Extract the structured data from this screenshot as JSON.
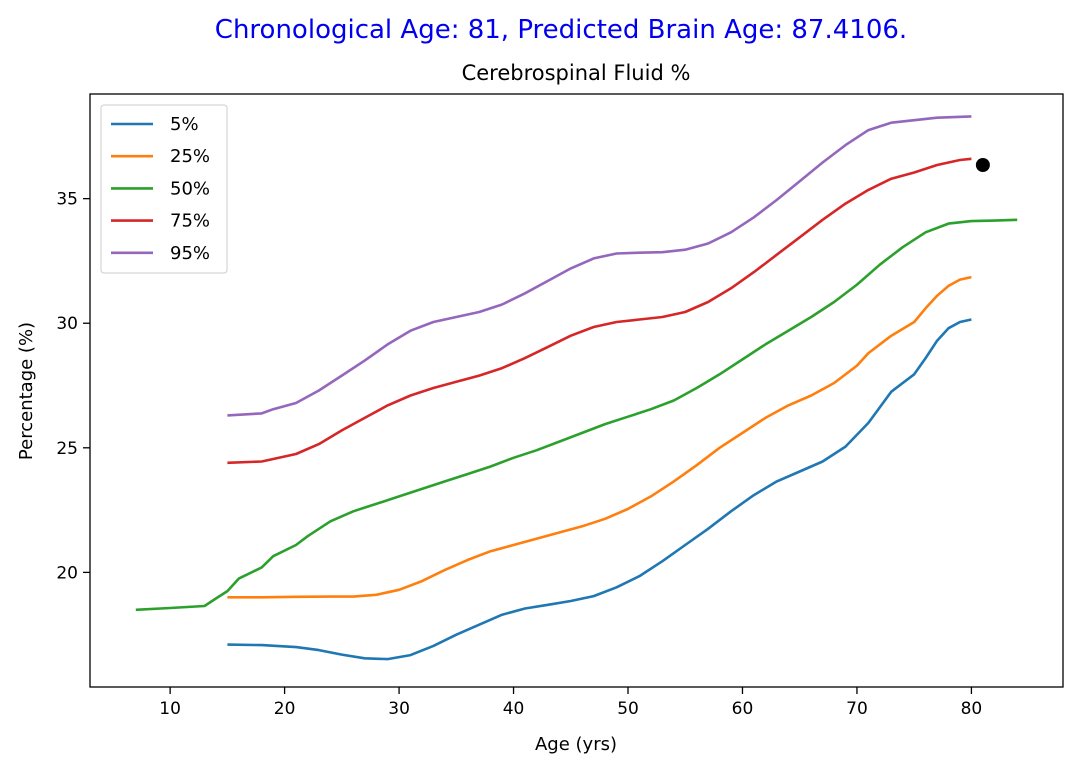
{
  "chart_data": {
    "type": "line",
    "suptitle": "Chronological Age: 81, Predicted Brain Age: 87.4106.",
    "title": "Cerebrospinal Fluid %",
    "xlabel": "Age (yrs)",
    "ylabel": "Percentage (%)",
    "xlim": [
      3,
      88
    ],
    "ylim": [
      15.4,
      39.2
    ],
    "xticks": [
      10,
      20,
      30,
      40,
      50,
      60,
      70,
      80
    ],
    "yticks": [
      20,
      25,
      30,
      35
    ],
    "grid": false,
    "legend_position": "top-left",
    "series": [
      {
        "name": "5%",
        "color": "#1f77b4",
        "points": [
          [
            15,
            17.1
          ],
          [
            18,
            17.08
          ],
          [
            21,
            17.0
          ],
          [
            23,
            16.88
          ],
          [
            25,
            16.7
          ],
          [
            27,
            16.55
          ],
          [
            29,
            16.52
          ],
          [
            31,
            16.68
          ],
          [
            33,
            17.05
          ],
          [
            35,
            17.5
          ],
          [
            37,
            17.9
          ],
          [
            39,
            18.3
          ],
          [
            41,
            18.55
          ],
          [
            43,
            18.7
          ],
          [
            45,
            18.85
          ],
          [
            47,
            19.05
          ],
          [
            49,
            19.4
          ],
          [
            51,
            19.85
          ],
          [
            53,
            20.45
          ],
          [
            55,
            21.1
          ],
          [
            57,
            21.75
          ],
          [
            59,
            22.45
          ],
          [
            61,
            23.1
          ],
          [
            63,
            23.65
          ],
          [
            65,
            24.05
          ],
          [
            67,
            24.45
          ],
          [
            69,
            25.05
          ],
          [
            71,
            26.0
          ],
          [
            73,
            27.25
          ],
          [
            75,
            27.95
          ],
          [
            76,
            28.6
          ],
          [
            77,
            29.3
          ],
          [
            78,
            29.8
          ],
          [
            79,
            30.05
          ],
          [
            80,
            30.15
          ]
        ]
      },
      {
        "name": "25%",
        "color": "#ff7f0e",
        "points": [
          [
            15,
            19.0
          ],
          [
            18,
            19.0
          ],
          [
            21,
            19.02
          ],
          [
            24,
            19.03
          ],
          [
            26,
            19.03
          ],
          [
            28,
            19.1
          ],
          [
            30,
            19.3
          ],
          [
            32,
            19.65
          ],
          [
            34,
            20.1
          ],
          [
            36,
            20.5
          ],
          [
            38,
            20.85
          ],
          [
            40,
            21.1
          ],
          [
            42,
            21.35
          ],
          [
            44,
            21.6
          ],
          [
            46,
            21.85
          ],
          [
            48,
            22.15
          ],
          [
            50,
            22.55
          ],
          [
            52,
            23.05
          ],
          [
            54,
            23.65
          ],
          [
            56,
            24.3
          ],
          [
            58,
            25.0
          ],
          [
            60,
            25.6
          ],
          [
            62,
            26.2
          ],
          [
            64,
            26.7
          ],
          [
            66,
            27.1
          ],
          [
            68,
            27.6
          ],
          [
            70,
            28.3
          ],
          [
            71,
            28.8
          ],
          [
            73,
            29.5
          ],
          [
            75,
            30.05
          ],
          [
            76,
            30.6
          ],
          [
            77,
            31.1
          ],
          [
            78,
            31.5
          ],
          [
            79,
            31.75
          ],
          [
            80,
            31.85
          ]
        ]
      },
      {
        "name": "50%",
        "color": "#2ca02c",
        "points": [
          [
            7,
            18.5
          ],
          [
            10,
            18.57
          ],
          [
            13,
            18.65
          ],
          [
            14,
            18.95
          ],
          [
            15,
            19.25
          ],
          [
            16,
            19.75
          ],
          [
            18,
            20.2
          ],
          [
            19,
            20.65
          ],
          [
            21,
            21.1
          ],
          [
            22,
            21.45
          ],
          [
            24,
            22.05
          ],
          [
            26,
            22.45
          ],
          [
            28,
            22.75
          ],
          [
            30,
            23.05
          ],
          [
            32,
            23.35
          ],
          [
            34,
            23.65
          ],
          [
            36,
            23.95
          ],
          [
            38,
            24.25
          ],
          [
            40,
            24.6
          ],
          [
            42,
            24.9
          ],
          [
            44,
            25.25
          ],
          [
            46,
            25.6
          ],
          [
            48,
            25.95
          ],
          [
            50,
            26.25
          ],
          [
            52,
            26.55
          ],
          [
            54,
            26.9
          ],
          [
            56,
            27.4
          ],
          [
            58,
            27.95
          ],
          [
            60,
            28.55
          ],
          [
            62,
            29.15
          ],
          [
            64,
            29.7
          ],
          [
            66,
            30.25
          ],
          [
            68,
            30.85
          ],
          [
            70,
            31.55
          ],
          [
            72,
            32.35
          ],
          [
            74,
            33.05
          ],
          [
            76,
            33.65
          ],
          [
            78,
            34.0
          ],
          [
            80,
            34.1
          ],
          [
            82,
            34.12
          ],
          [
            84,
            34.15
          ]
        ]
      },
      {
        "name": "75%",
        "color": "#d62728",
        "points": [
          [
            15,
            24.4
          ],
          [
            18,
            24.45
          ],
          [
            19,
            24.55
          ],
          [
            21,
            24.75
          ],
          [
            23,
            25.15
          ],
          [
            25,
            25.7
          ],
          [
            27,
            26.2
          ],
          [
            29,
            26.7
          ],
          [
            31,
            27.1
          ],
          [
            33,
            27.4
          ],
          [
            35,
            27.65
          ],
          [
            37,
            27.9
          ],
          [
            39,
            28.2
          ],
          [
            41,
            28.6
          ],
          [
            43,
            29.05
          ],
          [
            45,
            29.5
          ],
          [
            47,
            29.85
          ],
          [
            49,
            30.05
          ],
          [
            51,
            30.15
          ],
          [
            53,
            30.25
          ],
          [
            55,
            30.45
          ],
          [
            57,
            30.85
          ],
          [
            59,
            31.4
          ],
          [
            61,
            32.05
          ],
          [
            63,
            32.75
          ],
          [
            65,
            33.45
          ],
          [
            67,
            34.15
          ],
          [
            69,
            34.8
          ],
          [
            71,
            35.35
          ],
          [
            73,
            35.8
          ],
          [
            75,
            36.05
          ],
          [
            77,
            36.35
          ],
          [
            79,
            36.55
          ],
          [
            80,
            36.6
          ]
        ]
      },
      {
        "name": "95%",
        "color": "#9467bd",
        "points": [
          [
            15,
            26.3
          ],
          [
            18,
            26.38
          ],
          [
            19,
            26.55
          ],
          [
            21,
            26.8
          ],
          [
            23,
            27.3
          ],
          [
            25,
            27.9
          ],
          [
            27,
            28.5
          ],
          [
            29,
            29.15
          ],
          [
            31,
            29.7
          ],
          [
            33,
            30.05
          ],
          [
            35,
            30.25
          ],
          [
            37,
            30.45
          ],
          [
            39,
            30.75
          ],
          [
            41,
            31.2
          ],
          [
            43,
            31.7
          ],
          [
            45,
            32.2
          ],
          [
            47,
            32.6
          ],
          [
            49,
            32.8
          ],
          [
            51,
            32.83
          ],
          [
            53,
            32.85
          ],
          [
            55,
            32.95
          ],
          [
            57,
            33.2
          ],
          [
            59,
            33.65
          ],
          [
            61,
            34.25
          ],
          [
            63,
            34.95
          ],
          [
            65,
            35.7
          ],
          [
            67,
            36.45
          ],
          [
            69,
            37.15
          ],
          [
            71,
            37.75
          ],
          [
            73,
            38.05
          ],
          [
            75,
            38.15
          ],
          [
            77,
            38.25
          ],
          [
            80,
            38.3
          ]
        ]
      }
    ],
    "markers": [
      {
        "label": "subject",
        "x": 81,
        "y": 36.35,
        "color": "#000000"
      }
    ]
  }
}
